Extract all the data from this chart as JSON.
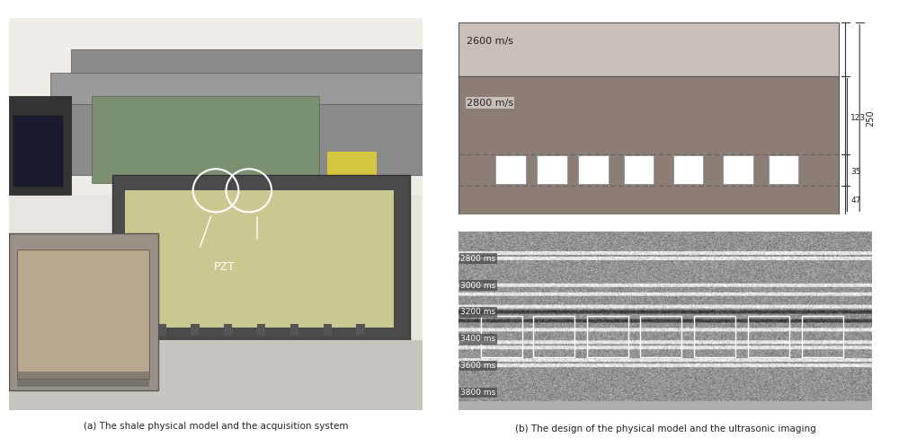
{
  "fig_width": 10.0,
  "fig_height": 4.97,
  "bg_color": "#ffffff",
  "caption_a": "(a) The shale physical model and the acquisition system",
  "caption_b": "(b) The design of the physical model and the ultrasonic imaging",
  "model_top_color": "#c8bfb8",
  "model_bottom_color": "#8c7d75",
  "layer1_label": "2600 m/s",
  "layer2_label": "2800 m/s",
  "dim_total": "250",
  "dim_top": "123",
  "dim_mid": "35",
  "dim_bot": "47",
  "dashed_line_color": "#666666",
  "box_color": "#ffffff",
  "seismic_bg": "#b0a898",
  "time_labels": [
    "2800 ms",
    "3000 ms",
    "3200 ms",
    "3400 ms",
    "3600 ms",
    "3800 ms"
  ],
  "white_box_color": "#ffffff",
  "annotation_pzt": "PZT"
}
